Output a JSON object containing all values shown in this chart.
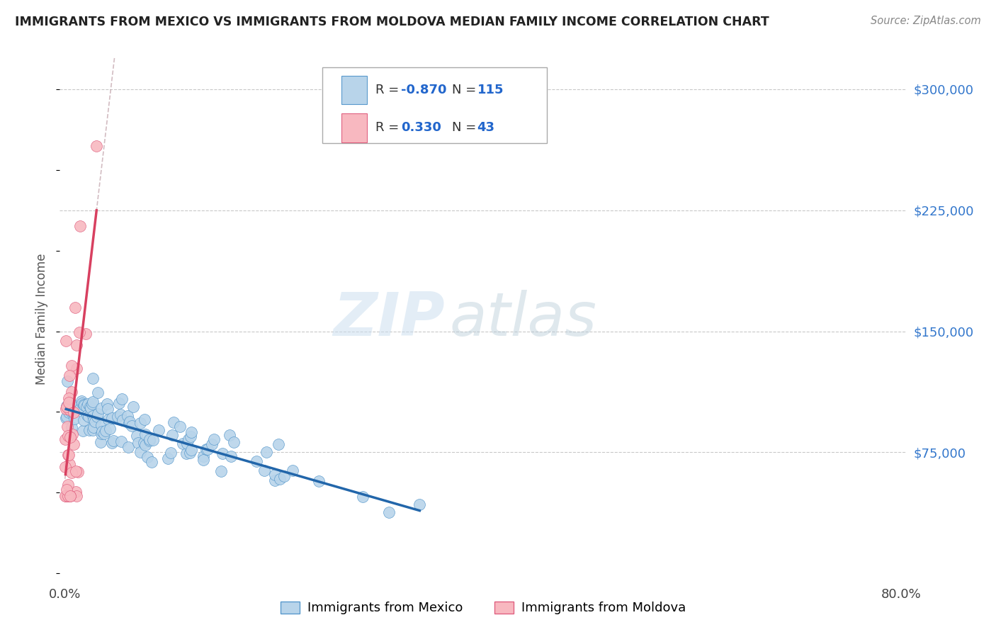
{
  "title": "IMMIGRANTS FROM MEXICO VS IMMIGRANTS FROM MOLDOVA MEDIAN FAMILY INCOME CORRELATION CHART",
  "source": "Source: ZipAtlas.com",
  "ylabel": "Median Family Income",
  "background_color": "#ffffff",
  "grid_color": "#c8c8c8",
  "watermark_zip": "ZIP",
  "watermark_atlas": "atlas",
  "mexico": {
    "R": -0.87,
    "N": 115,
    "color": "#b8d4ea",
    "edge_color": "#5899cc",
    "line_color": "#2266aa",
    "label": "Immigrants from Mexico"
  },
  "moldova": {
    "R": 0.33,
    "N": 43,
    "color": "#f8b8c0",
    "edge_color": "#e06080",
    "line_color": "#d84060",
    "label": "Immigrants from Moldova"
  },
  "yticks": [
    75000,
    150000,
    225000,
    300000
  ],
  "ytick_labels": [
    "$75,000",
    "$150,000",
    "$225,000",
    "$300,000"
  ],
  "ylim": [
    -5000,
    320000
  ],
  "xlim": [
    -0.005,
    0.805
  ],
  "mex_intercept": 112000,
  "mex_slope": -110000,
  "mol_intercept": 68000,
  "mol_slope": 3500000
}
